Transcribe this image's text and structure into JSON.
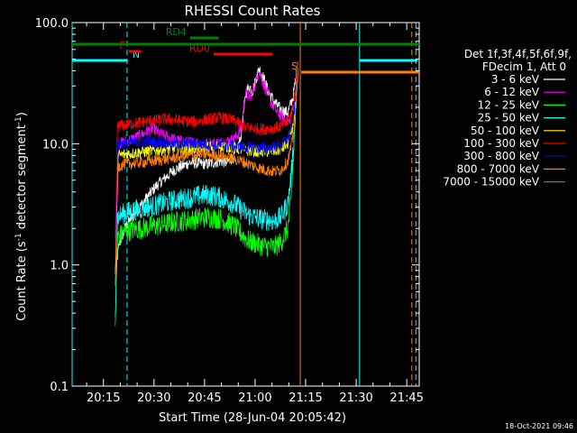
{
  "chart_data": {
    "type": "line",
    "title": "RHESSI Count Rates",
    "xlabel": "Start Time (28-Jun-04 20:05:42)",
    "ylabel": "Count Rate (s⁻¹ detector segment⁻¹)",
    "ylabel_main": "Count Rate (s",
    "ylabel_sup1": "-1",
    "ylabel_mid": " detector segment",
    "ylabel_sup2": "-1",
    "ylabel_end": ")",
    "x_scale": "time (minutes since 20:05:42)",
    "y_scale": "log",
    "xlim": [
      0,
      103
    ],
    "ylim": [
      0.1,
      100
    ],
    "x_ticks": [
      {
        "label": "20:15",
        "value": 9.3
      },
      {
        "label": "20:30",
        "value": 24.3
      },
      {
        "label": "20:45",
        "value": 39.3
      },
      {
        "label": "21:00",
        "value": 54.3
      },
      {
        "label": "21:15",
        "value": 69.3
      },
      {
        "label": "21:30",
        "value": 84.3
      },
      {
        "label": "21:45",
        "value": 99.3
      }
    ],
    "y_ticks": [
      {
        "label": "0.1",
        "value": 0.1
      },
      {
        "label": "1.0",
        "value": 1.0
      },
      {
        "label": "10.0",
        "value": 10.0
      },
      {
        "label": "100.0",
        "value": 100.0
      }
    ],
    "legend": {
      "header1": "Det 1f,3f,4f,5f,6f,9f,",
      "header2": "FDecim 1, Att 0",
      "placement": "right"
    },
    "series": [
      {
        "name": "3 - 6 keV",
        "color": "#ffffff",
        "points": [
          [
            12.8,
            0.9
          ],
          [
            14,
            1.5
          ],
          [
            16,
            2.1
          ],
          [
            20,
            3.0
          ],
          [
            25,
            4.5
          ],
          [
            30,
            6.0
          ],
          [
            35,
            7.0
          ],
          [
            40,
            6.8
          ],
          [
            44,
            7.2
          ],
          [
            46,
            7.0
          ],
          [
            48,
            7.8
          ],
          [
            50,
            11
          ],
          [
            51.5,
            26
          ],
          [
            52.5,
            30
          ],
          [
            53.5,
            27
          ],
          [
            55.5,
            42
          ],
          [
            56.5,
            37
          ],
          [
            58,
            28
          ],
          [
            60,
            22
          ],
          [
            62,
            19
          ],
          [
            64,
            18
          ],
          [
            65.5,
            24
          ],
          [
            67,
            44
          ]
        ]
      },
      {
        "name": "6 - 12 keV",
        "color": "#ff00ff",
        "points": [
          [
            12.8,
            1.2
          ],
          [
            14,
            10
          ],
          [
            18,
            11
          ],
          [
            21,
            12
          ],
          [
            24,
            13.5
          ],
          [
            26,
            12.2
          ],
          [
            28,
            11.5
          ],
          [
            32,
            10.5
          ],
          [
            36,
            10.2
          ],
          [
            40,
            10
          ],
          [
            44,
            10.2
          ],
          [
            48,
            10.8
          ],
          [
            50,
            13
          ],
          [
            51.5,
            26
          ],
          [
            53,
            24
          ],
          [
            55.5,
            40
          ],
          [
            57,
            30
          ],
          [
            59,
            22
          ],
          [
            61,
            18
          ],
          [
            63,
            16
          ],
          [
            64.5,
            15
          ],
          [
            66,
            22
          ],
          [
            67,
            45
          ]
        ]
      },
      {
        "name": "12 - 25 keV",
        "color": "#00ff00",
        "points": [
          [
            12.8,
            0.35
          ],
          [
            13.5,
            1.7
          ],
          [
            16,
            1.9
          ],
          [
            20,
            2.0
          ],
          [
            25,
            2.1
          ],
          [
            30,
            2.25
          ],
          [
            35,
            2.35
          ],
          [
            40,
            2.5
          ],
          [
            44,
            2.4
          ],
          [
            48,
            2.1
          ],
          [
            52,
            1.6
          ],
          [
            56,
            1.45
          ],
          [
            60,
            1.4
          ],
          [
            62,
            1.55
          ],
          [
            64,
            2.0
          ],
          [
            65,
            3.5
          ],
          [
            66,
            12
          ],
          [
            67,
            45
          ]
        ]
      },
      {
        "name": "25 - 50 keV",
        "color": "#00ffff",
        "points": [
          [
            12.8,
            0.4
          ],
          [
            13.5,
            2.5
          ],
          [
            16,
            2.7
          ],
          [
            20,
            2.9
          ],
          [
            25,
            3.1
          ],
          [
            30,
            3.4
          ],
          [
            35,
            3.6
          ],
          [
            40,
            3.8
          ],
          [
            44,
            3.6
          ],
          [
            48,
            3.2
          ],
          [
            52,
            2.6
          ],
          [
            56,
            2.4
          ],
          [
            60,
            2.3
          ],
          [
            62,
            2.5
          ],
          [
            64,
            3.2
          ],
          [
            65,
            5.5
          ],
          [
            66,
            13
          ],
          [
            67,
            46
          ]
        ]
      },
      {
        "name": "50 - 100 keV",
        "color": "#ffff00",
        "points": [
          [
            12.8,
            0.8
          ],
          [
            13.5,
            8
          ],
          [
            16,
            8.2
          ],
          [
            20,
            8.5
          ],
          [
            25,
            8.8
          ],
          [
            30,
            9.2
          ],
          [
            35,
            9.0
          ],
          [
            40,
            9.4
          ],
          [
            44,
            9.6
          ],
          [
            48,
            9.3
          ],
          [
            52,
            8.8
          ],
          [
            56,
            8.6
          ],
          [
            60,
            8.7
          ],
          [
            62,
            9.0
          ],
          [
            64,
            10
          ],
          [
            65.5,
            14
          ],
          [
            66.5,
            24
          ],
          [
            67,
            42
          ]
        ]
      },
      {
        "name": "100 - 300 keV",
        "color": "#ff0000",
        "points": [
          [
            12.8,
            1.5
          ],
          [
            13.5,
            14
          ],
          [
            17,
            14.5
          ],
          [
            20,
            15
          ],
          [
            24,
            15.5
          ],
          [
            28,
            16
          ],
          [
            32,
            15.5
          ],
          [
            36,
            15.2
          ],
          [
            40,
            15.8
          ],
          [
            44,
            16.5
          ],
          [
            48,
            15.5
          ],
          [
            52,
            13.5
          ],
          [
            56,
            13.2
          ],
          [
            60,
            13.5
          ],
          [
            62,
            14
          ],
          [
            64,
            15
          ],
          [
            65.5,
            20
          ],
          [
            66.5,
            32
          ],
          [
            67,
            48
          ]
        ]
      },
      {
        "name": "300 - 800 keV",
        "color": "#0000ff",
        "points": [
          [
            12.8,
            1.2
          ],
          [
            13.5,
            10
          ],
          [
            18,
            10.2
          ],
          [
            22,
            10.5
          ],
          [
            26,
            10.3
          ],
          [
            30,
            10.1
          ],
          [
            34,
            10
          ],
          [
            38,
            10
          ],
          [
            42,
            9.8
          ],
          [
            46,
            9.6
          ],
          [
            50,
            9.4
          ],
          [
            54,
            9.3
          ],
          [
            58,
            9.2
          ],
          [
            60,
            9.4
          ],
          [
            62,
            9.8
          ],
          [
            64,
            11
          ],
          [
            65.5,
            15
          ],
          [
            66.5,
            26
          ],
          [
            67,
            44
          ]
        ]
      },
      {
        "name": "800 - 7000 keV",
        "color": "#ff8000",
        "points": [
          [
            12.8,
            0.7
          ],
          [
            13.5,
            6.5
          ],
          [
            16,
            6.8
          ],
          [
            20,
            7.0
          ],
          [
            24,
            7.2
          ],
          [
            28,
            7.5
          ],
          [
            32,
            7.8
          ],
          [
            36,
            8.0
          ],
          [
            40,
            8.2
          ],
          [
            44,
            8.0
          ],
          [
            48,
            7.5
          ],
          [
            52,
            6.9
          ],
          [
            56,
            6.2
          ],
          [
            60,
            5.9
          ],
          [
            62,
            6.1
          ],
          [
            64,
            7.2
          ],
          [
            65.5,
            11
          ],
          [
            66.5,
            22
          ],
          [
            67,
            40
          ]
        ]
      },
      {
        "name": "7000 - 15000 keV",
        "color": "#808000",
        "points": []
      }
    ],
    "vertical_lines": [
      {
        "x": 0,
        "color": "#00ffff",
        "style": "solid"
      },
      {
        "x": 16.3,
        "color": "#00ffff",
        "style": "dashed"
      },
      {
        "x": 67.7,
        "color": "#ff8000",
        "style": "solid"
      },
      {
        "x": 85.3,
        "color": "#00ffff",
        "style": "solid"
      },
      {
        "x": 100.8,
        "color": "#ff8000",
        "style": "dashed"
      },
      {
        "x": 102.0,
        "color": "#00ffff",
        "style": "dashed"
      }
    ],
    "flag_bars": [
      {
        "label": "N",
        "color": "#00ffff",
        "x0": 0,
        "x1": 16.3,
        "y": 67,
        "label_side": "right"
      },
      {
        "label": "F",
        "color": "#ff0000",
        "x0": 16.8,
        "x1": 20.5,
        "y": 57,
        "label_side": "left"
      },
      {
        "label": "RD0",
        "color": "#ff0000",
        "x0": 42,
        "x1": 55,
        "y": 60,
        "label_side": "left"
      },
      {
        "label": "RD0",
        "color": "#ff0000",
        "x0": 55,
        "x1": 59.5,
        "y": 60,
        "label_side": "none"
      },
      {
        "label": "RD4",
        "color": "#008000",
        "x0": 35,
        "x1": 43.5,
        "y": 42,
        "label_side": "left"
      },
      {
        "label": "",
        "color": "#008000",
        "x0": 0,
        "x1": 103,
        "y": 49,
        "label_side": "none"
      },
      {
        "label": "S",
        "color": "#ff8000",
        "x0": 68,
        "x1": 103,
        "y": 80,
        "label_side": "left"
      },
      {
        "label": "",
        "color": "#00ffff",
        "x0": 85.3,
        "x1": 102.5,
        "y": 67,
        "label_side": "none"
      }
    ],
    "grid": false
  },
  "footer": {
    "timestamp": "18-Oct-2021 09:46"
  }
}
